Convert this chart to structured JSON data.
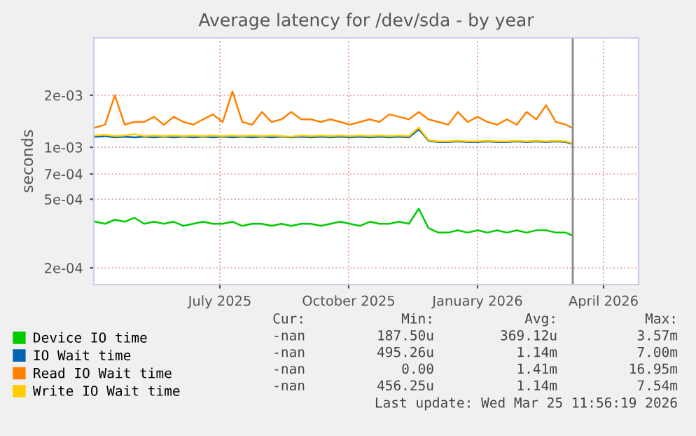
{
  "chart_data": {
    "type": "line",
    "title": "Average latency for /dev/sda - by year",
    "ylabel": "seconds",
    "log": "y",
    "grid": true,
    "legend": "bottom",
    "marker": "none",
    "line_style": "solid",
    "xlim": [
      "2025-04-02",
      "2026-04-26"
    ],
    "xticks": [
      {
        "value": "2025-07-01",
        "label": "July 2025"
      },
      {
        "value": "2025-10-01",
        "label": "October 2025"
      },
      {
        "value": "2026-01-01",
        "label": "January 2026"
      },
      {
        "value": "2026-04-01",
        "label": "April 2026"
      }
    ],
    "ylim": [
      0.00016,
      0.0043
    ],
    "yticks": [
      {
        "value": 0.0002,
        "label": "2e-04"
      },
      {
        "value": 0.0005,
        "label": "5e-04"
      },
      {
        "value": 0.0007,
        "label": "7e-04"
      },
      {
        "value": 0.001,
        "label": "1e-03"
      },
      {
        "value": 0.002,
        "label": "2e-03"
      }
    ],
    "x": [
      "2025-04-03",
      "2025-04-10",
      "2025-04-17",
      "2025-04-24",
      "2025-05-01",
      "2025-05-08",
      "2025-05-15",
      "2025-05-22",
      "2025-05-29",
      "2025-06-05",
      "2025-06-12",
      "2025-06-19",
      "2025-06-26",
      "2025-07-03",
      "2025-07-10",
      "2025-07-17",
      "2025-07-24",
      "2025-07-31",
      "2025-08-07",
      "2025-08-14",
      "2025-08-21",
      "2025-08-28",
      "2025-09-04",
      "2025-09-11",
      "2025-09-18",
      "2025-09-25",
      "2025-10-02",
      "2025-10-09",
      "2025-10-16",
      "2025-10-23",
      "2025-10-30",
      "2025-11-06",
      "2025-11-13",
      "2025-11-20",
      "2025-11-27",
      "2025-12-04",
      "2025-12-11",
      "2025-12-18",
      "2025-12-25",
      "2026-01-01",
      "2026-01-08",
      "2026-01-15",
      "2026-01-22",
      "2026-01-29",
      "2026-02-05",
      "2026-02-12",
      "2026-02-19",
      "2026-02-26",
      "2026-03-05",
      "2026-03-09"
    ],
    "series": [
      {
        "name": "Device IO time",
        "color": "#00cc00",
        "values": [
          0.00037,
          0.00036,
          0.00038,
          0.00037,
          0.00039,
          0.00036,
          0.00037,
          0.00036,
          0.00037,
          0.00035,
          0.00036,
          0.00037,
          0.00036,
          0.00036,
          0.00037,
          0.00035,
          0.00036,
          0.00036,
          0.00035,
          0.00036,
          0.00035,
          0.00036,
          0.00036,
          0.00035,
          0.00036,
          0.00037,
          0.00036,
          0.00035,
          0.00037,
          0.00036,
          0.00036,
          0.00037,
          0.00036,
          0.00044,
          0.00034,
          0.00032,
          0.00032,
          0.00033,
          0.00032,
          0.00033,
          0.00032,
          0.00033,
          0.00032,
          0.00033,
          0.00032,
          0.00033,
          0.00033,
          0.00032,
          0.00032,
          0.00031
        ]
      },
      {
        "name": "IO Wait time",
        "color": "#0066b3",
        "values": [
          0.00115,
          0.00116,
          0.00114,
          0.00115,
          0.00114,
          0.00115,
          0.00114,
          0.00115,
          0.00114,
          0.00115,
          0.00114,
          0.00115,
          0.00114,
          0.00115,
          0.00114,
          0.00115,
          0.00114,
          0.00115,
          0.00114,
          0.00115,
          0.00114,
          0.00115,
          0.00114,
          0.00115,
          0.00114,
          0.00115,
          0.00114,
          0.00115,
          0.00114,
          0.00115,
          0.00114,
          0.00115,
          0.00114,
          0.00127,
          0.00109,
          0.00107,
          0.00107,
          0.00108,
          0.00107,
          0.00107,
          0.00108,
          0.00107,
          0.00107,
          0.00108,
          0.00107,
          0.00108,
          0.00107,
          0.00108,
          0.00107,
          0.00105
        ]
      },
      {
        "name": "Read IO Wait time",
        "color": "#ff8000",
        "values": [
          0.0013,
          0.00135,
          0.002,
          0.00135,
          0.0014,
          0.0014,
          0.0015,
          0.00135,
          0.0015,
          0.0014,
          0.00135,
          0.00145,
          0.00155,
          0.0014,
          0.0021,
          0.0014,
          0.00135,
          0.0016,
          0.0014,
          0.00145,
          0.0016,
          0.00145,
          0.00145,
          0.0014,
          0.00145,
          0.0014,
          0.00135,
          0.0014,
          0.00145,
          0.0014,
          0.00155,
          0.0015,
          0.00145,
          0.0016,
          0.00145,
          0.0014,
          0.00135,
          0.0016,
          0.0014,
          0.0015,
          0.0014,
          0.00135,
          0.00145,
          0.00135,
          0.0016,
          0.00145,
          0.00175,
          0.0014,
          0.00135,
          0.0013
        ]
      },
      {
        "name": "Write IO Wait time",
        "color": "#ffcc00",
        "values": [
          0.00117,
          0.00118,
          0.00116,
          0.00117,
          0.00119,
          0.00116,
          0.00117,
          0.00116,
          0.00117,
          0.00116,
          0.00117,
          0.00116,
          0.00117,
          0.00116,
          0.00117,
          0.00116,
          0.00117,
          0.00116,
          0.00117,
          0.00116,
          0.00115,
          0.00117,
          0.00116,
          0.00117,
          0.00116,
          0.00117,
          0.00116,
          0.00117,
          0.00116,
          0.00117,
          0.00116,
          0.00117,
          0.00116,
          0.0013,
          0.0011,
          0.00108,
          0.00108,
          0.00109,
          0.00108,
          0.00108,
          0.00109,
          0.00108,
          0.00108,
          0.00109,
          0.00108,
          0.00109,
          0.00108,
          0.00109,
          0.00108,
          0.00106
        ]
      }
    ],
    "ref_lines": [
      {
        "axis": "x",
        "value": "2026-03-10",
        "label": null,
        "color": "#888888"
      }
    ],
    "annotations": [
      "Cur:",
      "Min:",
      "Avg:",
      "Max:",
      "-nan",
      "187.50u",
      "369.12u",
      "3.57m",
      "-nan",
      "495.26u",
      "1.14m",
      "7.00m",
      "-nan",
      "0.00",
      "1.41m",
      "16.95m",
      "-nan",
      "456.25u",
      "1.14m",
      "7.54m",
      "Last update: Wed Mar 25 11:56:19 2026"
    ]
  }
}
